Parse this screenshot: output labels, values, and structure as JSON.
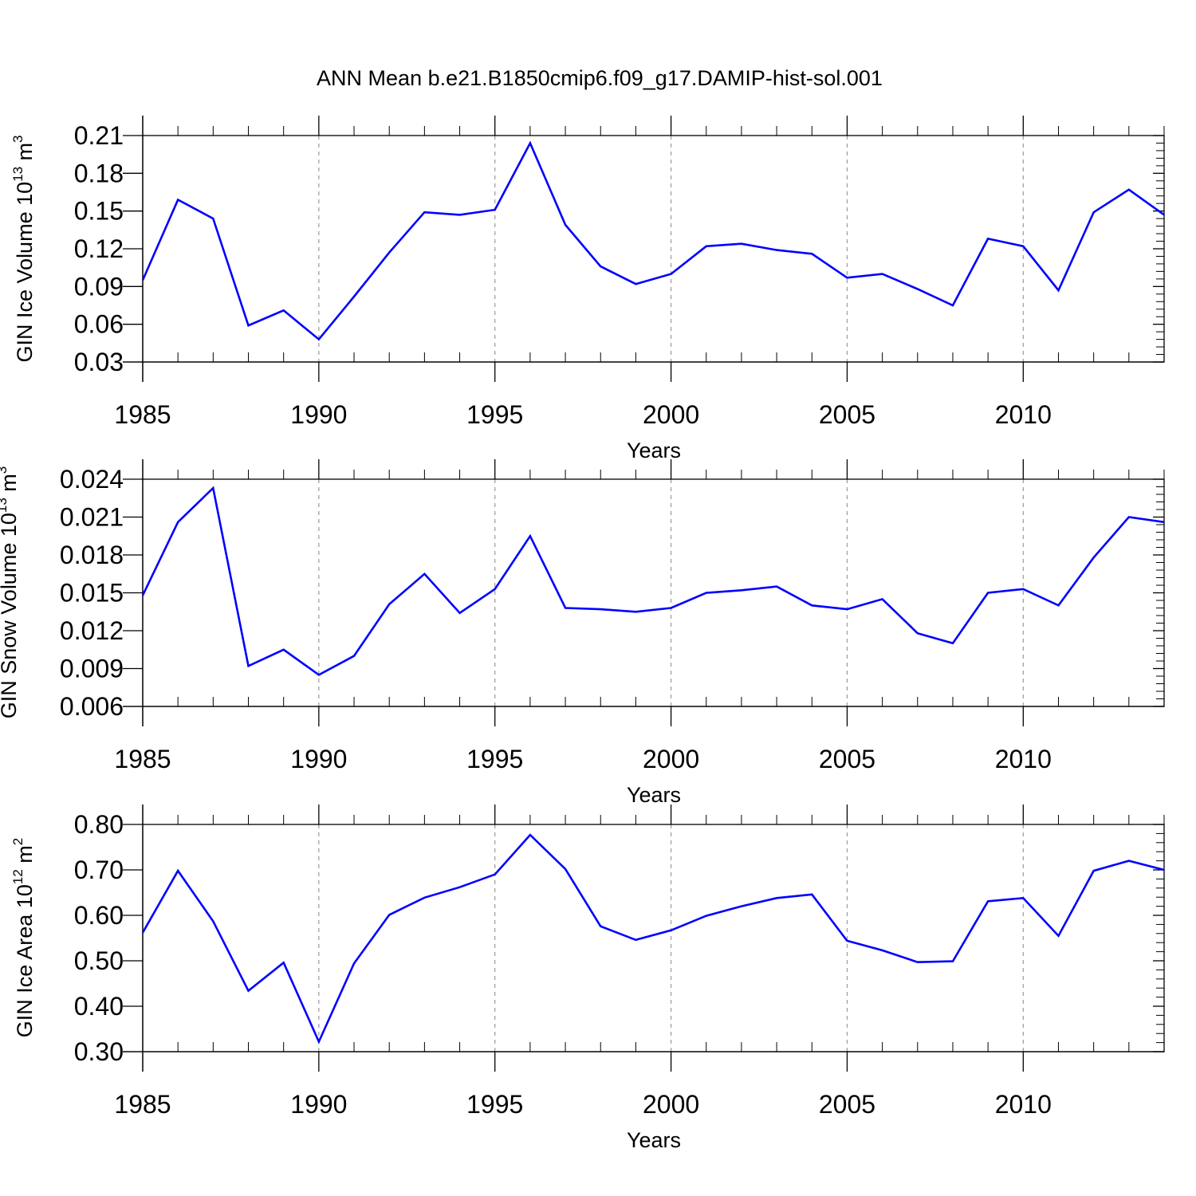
{
  "title": "ANN Mean b.e21.B1850cmip6.f09_g17.DAMIP-hist-sol.001",
  "series_color": "#0000ff",
  "chart_data": [
    {
      "type": "line",
      "ylabel": "GIN Ice Volume 10",
      "ylabel_exp": "13",
      "ylabel_unit": " m",
      "ylabel_unit_exp": "3",
      "xlabel": "Years",
      "xlim": [
        1985,
        2014
      ],
      "ylim": [
        0.03,
        0.21
      ],
      "x_ticks": [
        "1985",
        "1990",
        "1995",
        "2000",
        "2005",
        "2010"
      ],
      "y_ticks": [
        "0.03",
        "0.06",
        "0.09",
        "0.12",
        "0.15",
        "0.18",
        "0.21"
      ],
      "x": [
        1985,
        1986,
        1987,
        1988,
        1989,
        1990,
        1991,
        1992,
        1993,
        1994,
        1995,
        1996,
        1997,
        1998,
        1999,
        2000,
        2001,
        2002,
        2003,
        2004,
        2005,
        2006,
        2007,
        2008,
        2009,
        2010,
        2011,
        2012,
        2013,
        2014
      ],
      "values": [
        0.095,
        0.159,
        0.144,
        0.059,
        0.071,
        0.048,
        0.082,
        0.117,
        0.149,
        0.147,
        0.151,
        0.204,
        0.139,
        0.106,
        0.092,
        0.1,
        0.122,
        0.124,
        0.119,
        0.116,
        0.097,
        0.1,
        0.088,
        0.075,
        0.128,
        0.122,
        0.087,
        0.149,
        0.167,
        0.147
      ]
    },
    {
      "type": "line",
      "ylabel": "GIN Snow Volume 10",
      "ylabel_exp": "13",
      "ylabel_unit": " m",
      "ylabel_unit_exp": "3",
      "xlabel": "Years",
      "xlim": [
        1985,
        2014
      ],
      "ylim": [
        0.006,
        0.024
      ],
      "x_ticks": [
        "1985",
        "1990",
        "1995",
        "2000",
        "2005",
        "2010"
      ],
      "y_ticks": [
        "0.006",
        "0.009",
        "0.012",
        "0.015",
        "0.018",
        "0.021",
        "0.024"
      ],
      "x": [
        1985,
        1986,
        1987,
        1988,
        1989,
        1990,
        1991,
        1992,
        1993,
        1994,
        1995,
        1996,
        1997,
        1998,
        1999,
        2000,
        2001,
        2002,
        2003,
        2004,
        2005,
        2006,
        2007,
        2008,
        2009,
        2010,
        2011,
        2012,
        2013,
        2014
      ],
      "values": [
        0.0148,
        0.0206,
        0.0233,
        0.0092,
        0.0105,
        0.0085,
        0.01,
        0.0141,
        0.0165,
        0.0134,
        0.0153,
        0.0195,
        0.0138,
        0.0137,
        0.0135,
        0.0138,
        0.015,
        0.0152,
        0.0155,
        0.014,
        0.0137,
        0.0145,
        0.0118,
        0.011,
        0.015,
        0.0153,
        0.014,
        0.0178,
        0.021,
        0.0206
      ]
    },
    {
      "type": "line",
      "ylabel": "GIN Ice Area 10",
      "ylabel_exp": "12",
      "ylabel_unit": " m",
      "ylabel_unit_exp": "2",
      "xlabel": "Years",
      "xlim": [
        1985,
        2014
      ],
      "ylim": [
        0.3,
        0.8
      ],
      "x_ticks": [
        "1985",
        "1990",
        "1995",
        "2000",
        "2005",
        "2010"
      ],
      "y_ticks": [
        "0.30",
        "0.40",
        "0.50",
        "0.60",
        "0.70",
        "0.80"
      ],
      "x": [
        1985,
        1986,
        1987,
        1988,
        1989,
        1990,
        1991,
        1992,
        1993,
        1994,
        1995,
        1996,
        1997,
        1998,
        1999,
        2000,
        2001,
        2002,
        2003,
        2004,
        2005,
        2006,
        2007,
        2008,
        2009,
        2010,
        2011,
        2012,
        2013,
        2014
      ],
      "values": [
        0.562,
        0.698,
        0.587,
        0.434,
        0.496,
        0.322,
        0.494,
        0.601,
        0.639,
        0.662,
        0.69,
        0.777,
        0.702,
        0.576,
        0.546,
        0.567,
        0.599,
        0.62,
        0.638,
        0.646,
        0.544,
        0.523,
        0.497,
        0.499,
        0.631,
        0.638,
        0.555,
        0.698,
        0.72,
        0.7
      ]
    }
  ]
}
